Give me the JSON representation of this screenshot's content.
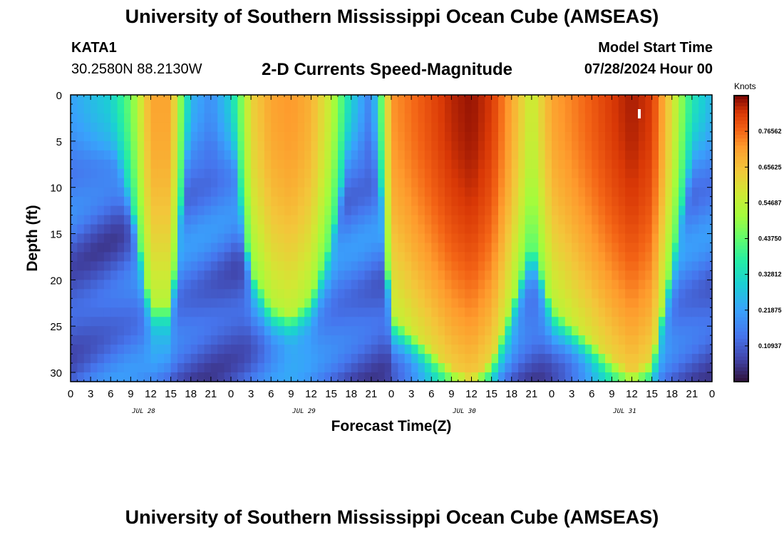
{
  "header": {
    "title": "University of Southern Mississippi Ocean Cube (AMSEAS)",
    "station": "KATA1",
    "coords": "30.2580N  88.2130W",
    "variable": "2-D Currents Speed-Magnitude",
    "model_start_label": "Model Start Time",
    "model_start_value": "07/28/2024 Hour 00"
  },
  "footer": {
    "title": "University of Southern Mississippi Ocean Cube (AMSEAS)"
  },
  "chart_data": {
    "type": "heatmap",
    "xlabel": "Forecast Time(Z)",
    "ylabel": "Depth (ft)",
    "x_tick_labels": [
      "0",
      "3",
      "6",
      "9",
      "12",
      "15",
      "18",
      "21",
      "0",
      "3",
      "6",
      "9",
      "12",
      "15",
      "18",
      "21",
      "0",
      "3",
      "6",
      "9",
      "12",
      "15",
      "18",
      "21",
      "0",
      "3",
      "6",
      "9",
      "12",
      "15",
      "18",
      "21",
      "0"
    ],
    "date_labels": [
      "JUL 28",
      "JUL 29",
      "JUL 30",
      "JUL 31"
    ],
    "y_ticks": [
      0,
      5,
      10,
      15,
      20,
      25,
      30
    ],
    "xlim_hours": [
      0,
      96
    ],
    "ylim_ft": [
      0,
      31
    ],
    "colorbar": {
      "units": "Knots",
      "range": [
        0,
        0.875
      ],
      "tick_labels": [
        "0.10937",
        "0.21875",
        "0.32812",
        "0.43750",
        "0.54687",
        "0.65625",
        "0.76562"
      ]
    },
    "surface_speed_knots": [
      {
        "hour": 0,
        "value": 0.22
      },
      {
        "hour": 3,
        "value": 0.26
      },
      {
        "hour": 6,
        "value": 0.3
      },
      {
        "hour": 9,
        "value": 0.45
      },
      {
        "hour": 12,
        "value": 0.7
      },
      {
        "hour": 15,
        "value": 0.7
      },
      {
        "hour": 18,
        "value": 0.25
      },
      {
        "hour": 21,
        "value": 0.18
      },
      {
        "hour": 24,
        "value": 0.3
      },
      {
        "hour": 27,
        "value": 0.62
      },
      {
        "hour": 30,
        "value": 0.7
      },
      {
        "hour": 33,
        "value": 0.72
      },
      {
        "hour": 36,
        "value": 0.68
      },
      {
        "hour": 39,
        "value": 0.55
      },
      {
        "hour": 42,
        "value": 0.3
      },
      {
        "hour": 45,
        "value": 0.15
      },
      {
        "hour": 48,
        "value": 0.72
      },
      {
        "hour": 51,
        "value": 0.76
      },
      {
        "hour": 54,
        "value": 0.8
      },
      {
        "hour": 57,
        "value": 0.84
      },
      {
        "hour": 60,
        "value": 0.86
      },
      {
        "hour": 63,
        "value": 0.82
      },
      {
        "hour": 66,
        "value": 0.7
      },
      {
        "hour": 69,
        "value": 0.55
      },
      {
        "hour": 72,
        "value": 0.7
      },
      {
        "hour": 75,
        "value": 0.74
      },
      {
        "hour": 78,
        "value": 0.78
      },
      {
        "hour": 81,
        "value": 0.82
      },
      {
        "hour": 84,
        "value": 0.85
      },
      {
        "hour": 87,
        "value": 0.82
      },
      {
        "hour": 90,
        "value": 0.6
      },
      {
        "hour": 93,
        "value": 0.35
      },
      {
        "hour": 96,
        "value": 0.25
      }
    ]
  }
}
